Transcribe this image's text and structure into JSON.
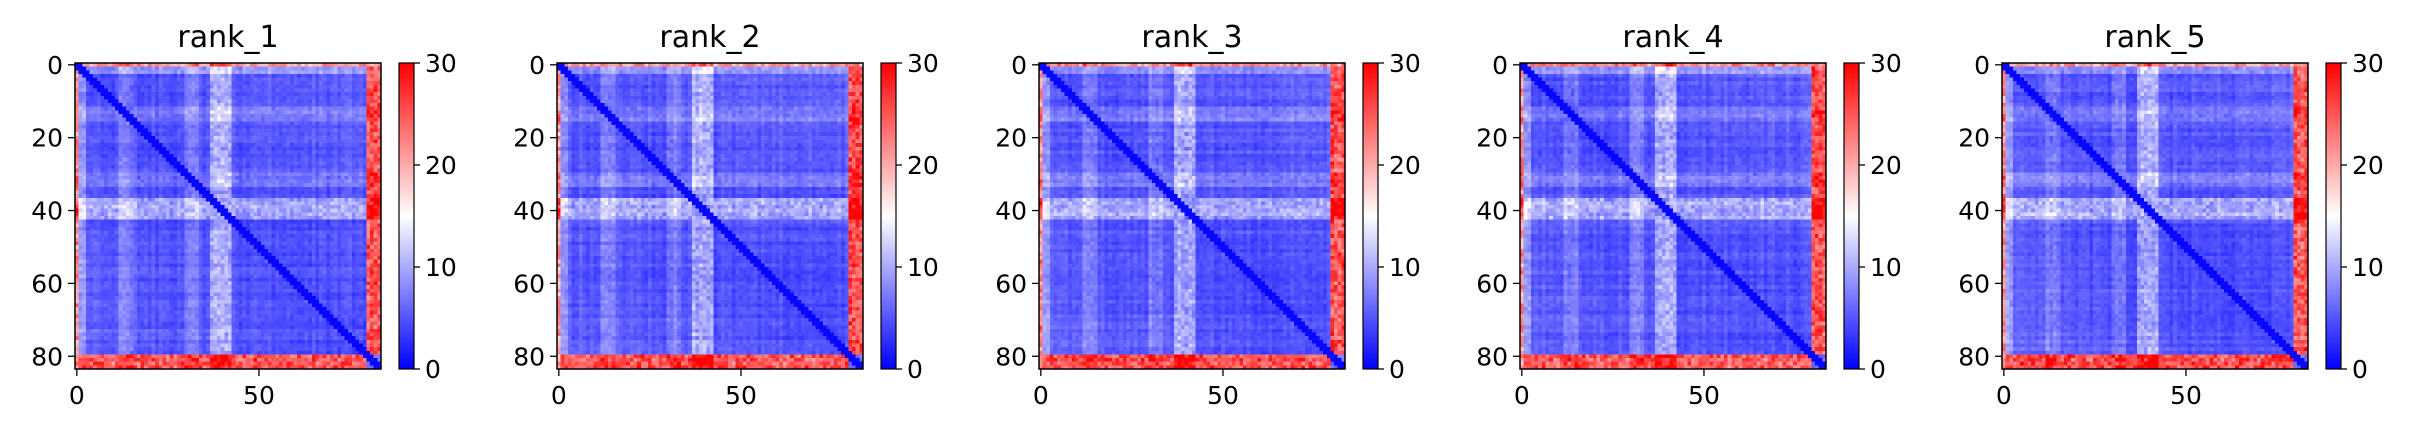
{
  "chart_data": [
    {
      "type": "heatmap",
      "title": "rank_1",
      "seed": 11,
      "size": 84,
      "xticks": [
        0,
        50
      ],
      "yticks": [
        0,
        20,
        40,
        60,
        80
      ],
      "colorbar": {
        "ticks": [
          0,
          10,
          20,
          30
        ],
        "range": [
          0,
          30
        ],
        "colors": [
          "#0000ff",
          "#ffffff",
          "#ff0000"
        ]
      }
    },
    {
      "type": "heatmap",
      "title": "rank_2",
      "seed": 23,
      "size": 84,
      "xticks": [
        0,
        50
      ],
      "yticks": [
        0,
        20,
        40,
        60,
        80
      ],
      "colorbar": {
        "ticks": [
          0,
          10,
          20,
          30
        ],
        "range": [
          0,
          30
        ],
        "colors": [
          "#0000ff",
          "#ffffff",
          "#ff0000"
        ]
      }
    },
    {
      "type": "heatmap",
      "title": "rank_3",
      "seed": 37,
      "size": 84,
      "xticks": [
        0,
        50
      ],
      "yticks": [
        0,
        20,
        40,
        60,
        80
      ],
      "colorbar": {
        "ticks": [
          0,
          10,
          20,
          30
        ],
        "range": [
          0,
          30
        ],
        "colors": [
          "#0000ff",
          "#ffffff",
          "#ff0000"
        ]
      }
    },
    {
      "type": "heatmap",
      "title": "rank_4",
      "seed": 41,
      "size": 84,
      "xticks": [
        0,
        50
      ],
      "yticks": [
        0,
        20,
        40,
        60,
        80
      ],
      "colorbar": {
        "ticks": [
          0,
          10,
          20,
          30
        ],
        "range": [
          0,
          30
        ],
        "colors": [
          "#0000ff",
          "#ffffff",
          "#ff0000"
        ]
      }
    },
    {
      "type": "heatmap",
      "title": "rank_5",
      "seed": 53,
      "size": 84,
      "xticks": [
        0,
        50
      ],
      "yticks": [
        0,
        20,
        40,
        60,
        80
      ],
      "colorbar": {
        "ticks": [
          0,
          10,
          20,
          30
        ],
        "range": [
          0,
          30
        ],
        "colors": [
          "#0000ff",
          "#ffffff",
          "#ff0000"
        ]
      }
    }
  ]
}
